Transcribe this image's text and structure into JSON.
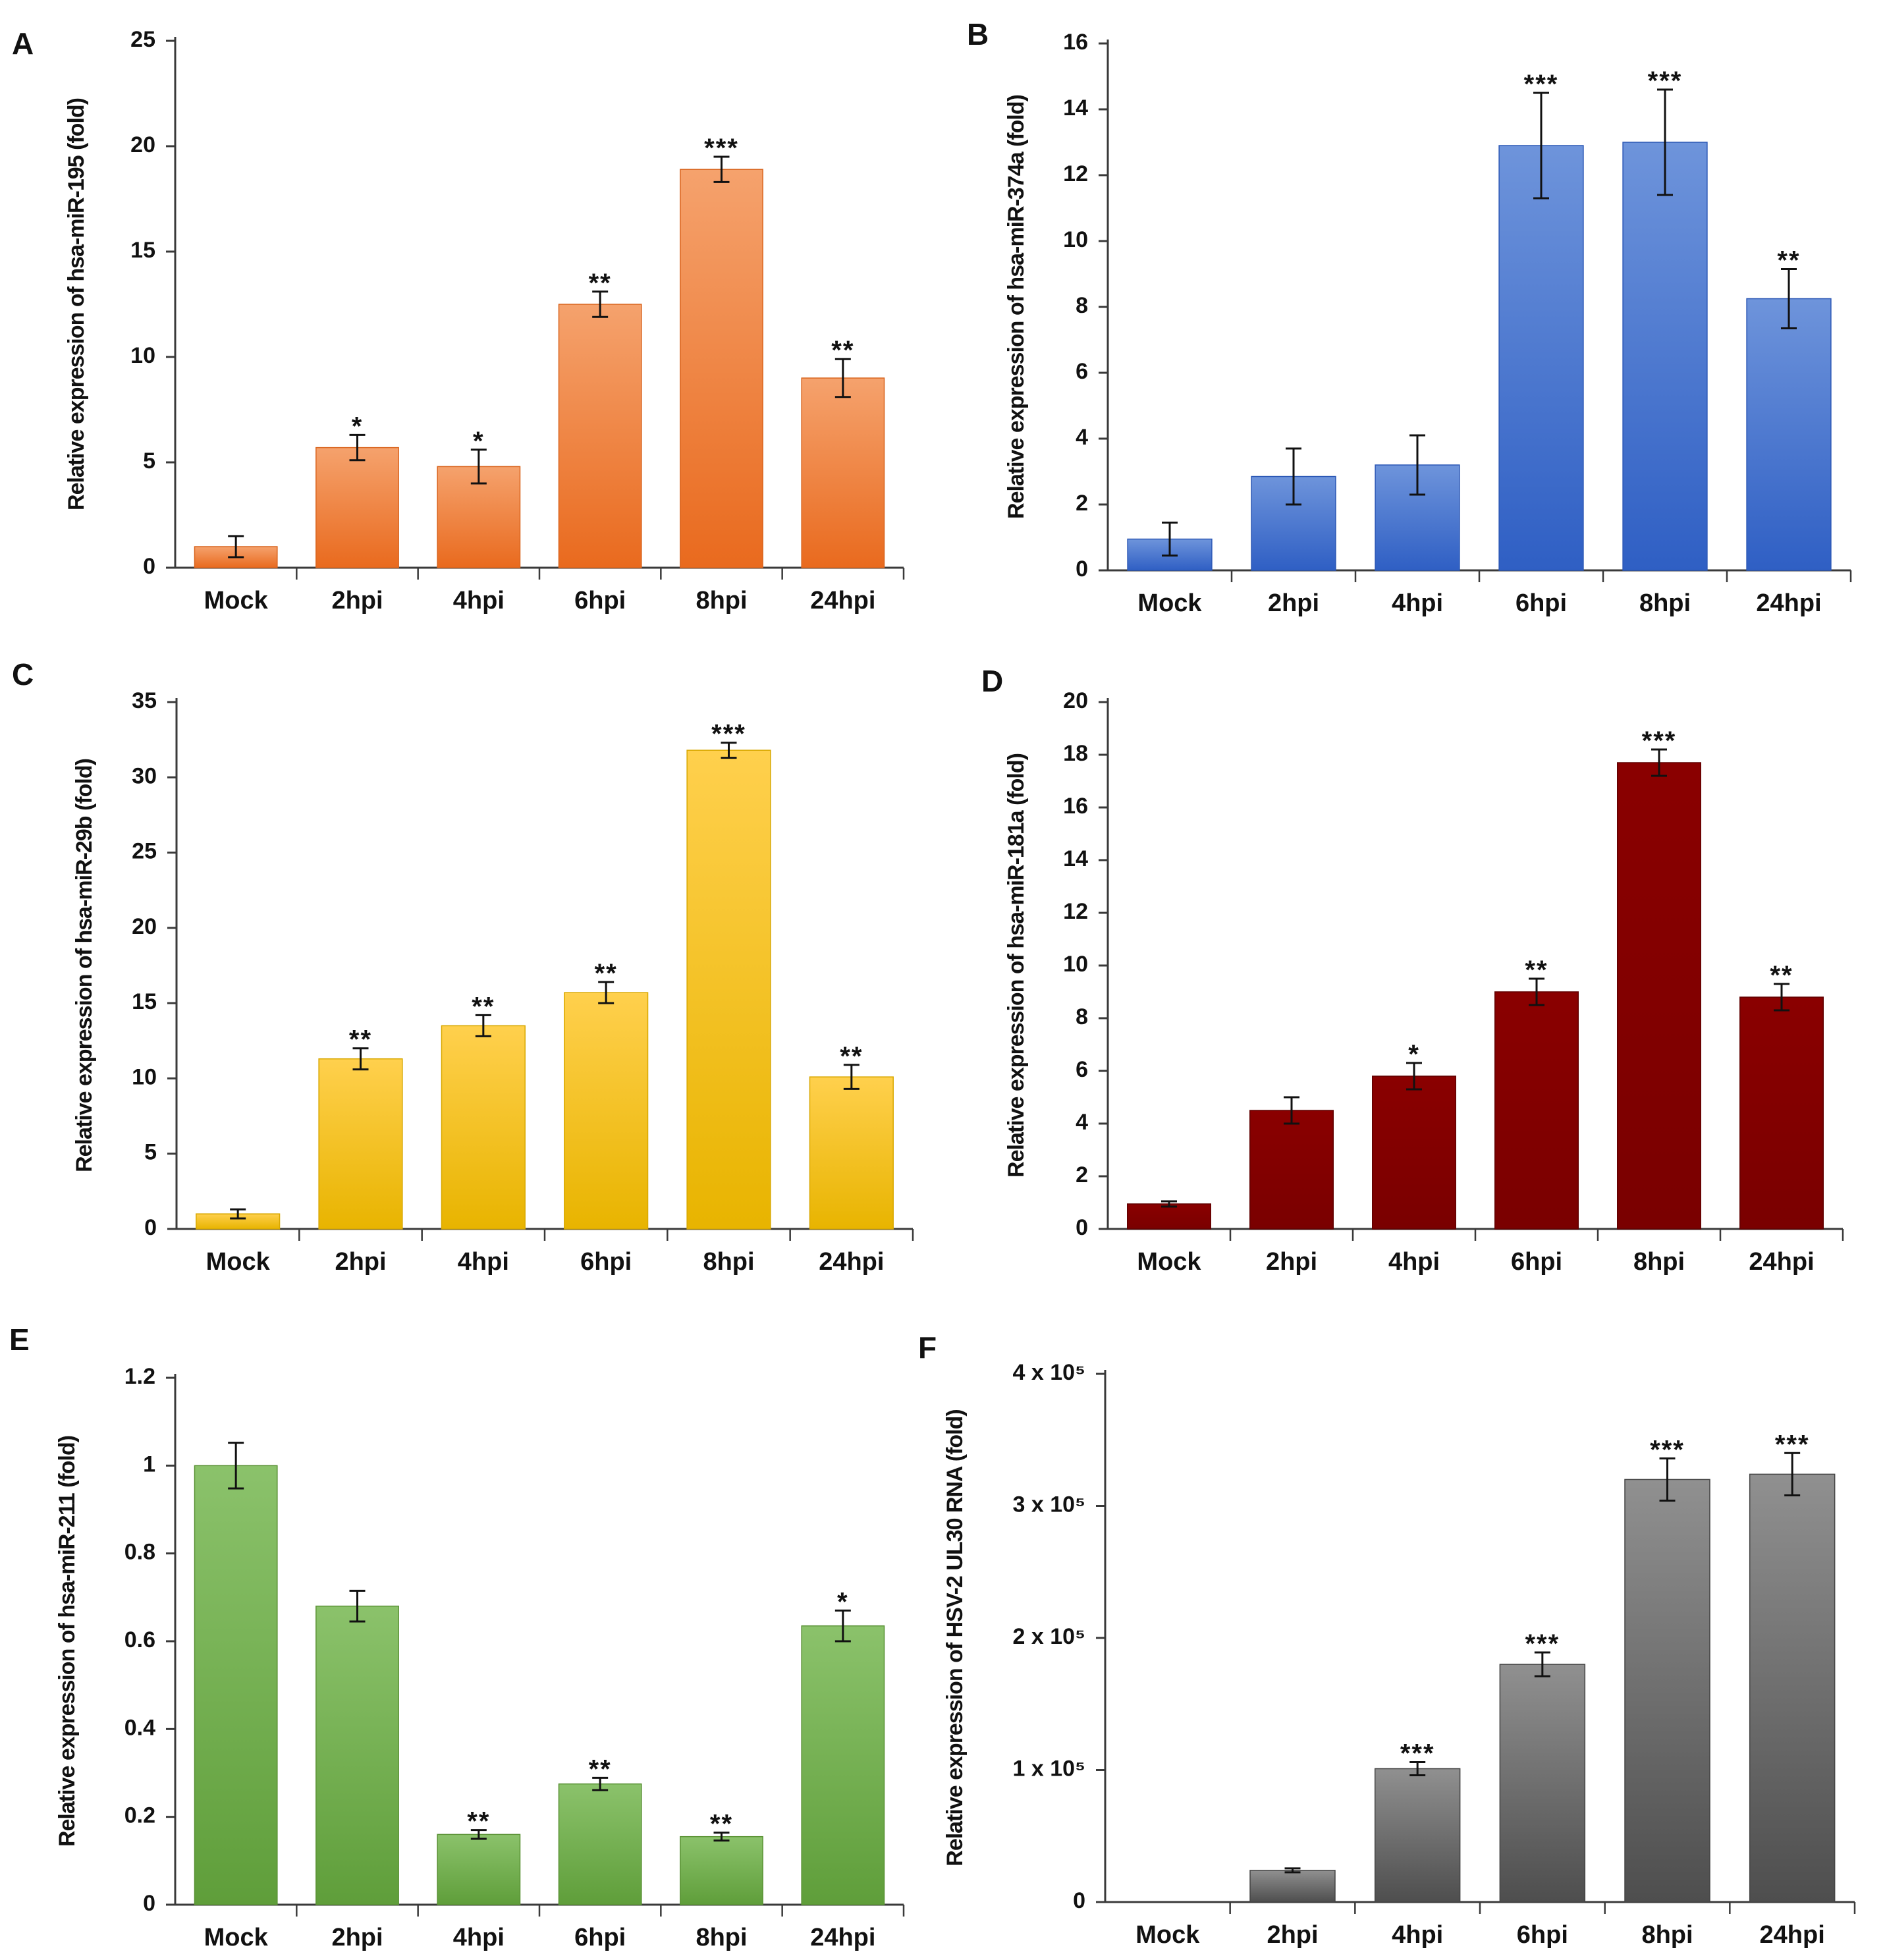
{
  "figure": {
    "layout": "3 rows x 2 columns"
  },
  "chart_data": [
    {
      "panel": "A",
      "type": "bar",
      "categories": [
        "Mock",
        "2hpi",
        "4hpi",
        "6hpi",
        "8hpi",
        "24hpi"
      ],
      "values": [
        1.0,
        5.7,
        4.8,
        12.5,
        18.9,
        9.0
      ],
      "errors": [
        0.5,
        0.6,
        0.8,
        0.6,
        0.6,
        0.9
      ],
      "significance": [
        "",
        "*",
        "*",
        "**",
        "***",
        "**"
      ],
      "ylabel": "Relative expression of hsa-miR-195 (fold)",
      "ylim": [
        0,
        25
      ],
      "yticks": [
        0,
        5,
        10,
        15,
        20,
        25
      ],
      "ytick_labels": [
        "0",
        "5",
        "10",
        "15",
        "20",
        "25"
      ],
      "colors": {
        "top": "#F5A26D",
        "bottom": "#E96A1E",
        "edge": "#D9651F"
      }
    },
    {
      "panel": "B",
      "type": "bar",
      "categories": [
        "Mock",
        "2hpi",
        "4hpi",
        "6hpi",
        "8hpi",
        "24hpi"
      ],
      "values": [
        0.95,
        2.85,
        3.2,
        12.9,
        13.0,
        8.25
      ],
      "errors": [
        0.5,
        0.85,
        0.9,
        1.6,
        1.6,
        0.9
      ],
      "significance": [
        "",
        "",
        "",
        "***",
        "***",
        "**"
      ],
      "ylabel": "Relative expression of hsa-miR-374a (fold)",
      "ylim": [
        0,
        16
      ],
      "yticks": [
        0,
        2,
        4,
        6,
        8,
        10,
        12,
        14,
        16
      ],
      "ytick_labels": [
        "0",
        "2",
        "4",
        "6",
        "8",
        "10",
        "12",
        "14",
        "16"
      ],
      "colors": {
        "top": "#6E94DB",
        "bottom": "#2F5FC4",
        "edge": "#2C58B5"
      }
    },
    {
      "panel": "C",
      "type": "bar",
      "categories": [
        "Mock",
        "2hpi",
        "4hpi",
        "6hpi",
        "8hpi",
        "24hpi"
      ],
      "values": [
        1.0,
        11.3,
        13.5,
        15.7,
        31.8,
        10.1
      ],
      "errors": [
        0.3,
        0.7,
        0.7,
        0.7,
        0.5,
        0.8
      ],
      "significance": [
        "",
        "**",
        "**",
        "**",
        "***",
        "**"
      ],
      "ylabel": "Relative expression of hsa-miR-29b (fold)",
      "ylim": [
        0,
        35
      ],
      "yticks": [
        0,
        5,
        10,
        15,
        20,
        25,
        30,
        35
      ],
      "ytick_labels": [
        "0",
        "5",
        "10",
        "15",
        "20",
        "25",
        "30",
        "35"
      ],
      "colors": {
        "top": "#FFD04D",
        "bottom": "#E8B400",
        "edge": "#D9A800"
      }
    },
    {
      "panel": "D",
      "type": "bar",
      "categories": [
        "Mock",
        "2hpi",
        "4hpi",
        "6hpi",
        "8hpi",
        "24hpi"
      ],
      "values": [
        0.95,
        4.5,
        5.8,
        9.0,
        17.7,
        8.8
      ],
      "errors": [
        0.1,
        0.5,
        0.5,
        0.5,
        0.5,
        0.5
      ],
      "significance": [
        "",
        "",
        "*",
        "**",
        "***",
        "**"
      ],
      "ylabel": "Relative expression of hsa-miR-181a (fold)",
      "ylim": [
        0,
        20
      ],
      "yticks": [
        0,
        2,
        4,
        6,
        8,
        10,
        12,
        14,
        16,
        18,
        20
      ],
      "ytick_labels": [
        "0",
        "2",
        "4",
        "6",
        "8",
        "10",
        "12",
        "14",
        "16",
        "18",
        "20"
      ],
      "colors": {
        "top": "#8A0000",
        "bottom": "#7A0000",
        "edge": "#600000"
      }
    },
    {
      "panel": "E",
      "type": "bar",
      "categories": [
        "Mock",
        "2hpi",
        "4hpi",
        "6hpi",
        "8hpi",
        "24hpi"
      ],
      "values": [
        1.0,
        0.68,
        0.16,
        0.275,
        0.155,
        0.635
      ],
      "errors": [
        0.052,
        0.035,
        0.01,
        0.014,
        0.009,
        0.035
      ],
      "significance": [
        "",
        "",
        "**",
        "**",
        "**",
        "*"
      ],
      "ylabel": "Relative expression of hsa-miR-211 (fold)",
      "ylim": [
        0,
        1.2
      ],
      "yticks": [
        0,
        0.2,
        0.4,
        0.6,
        0.8,
        1.0,
        1.2
      ],
      "ytick_labels": [
        "0",
        "0.2",
        "0.4",
        "0.6",
        "0.8",
        "1",
        "1.2"
      ],
      "colors": {
        "top": "#8BC26B",
        "bottom": "#5F9E3A",
        "edge": "#5A9235"
      }
    },
    {
      "panel": "F",
      "type": "bar",
      "categories": [
        "Mock",
        "2hpi",
        "4hpi",
        "6hpi",
        "8hpi",
        "24hpi"
      ],
      "values": [
        0,
        24000,
        101000,
        180000,
        320000,
        324000
      ],
      "errors": [
        0,
        1500,
        5000,
        9000,
        16000,
        16000
      ],
      "significance": [
        "",
        "",
        "***",
        "***",
        "***",
        "***"
      ],
      "ylabel": "Relative expression of HSV-2 UL30 RNA (fold)",
      "ylim": [
        0,
        400000
      ],
      "yticks": [
        0,
        100000,
        200000,
        300000,
        400000
      ],
      "ytick_labels": [
        "0",
        "1 x 10⁵",
        "2 x 10⁵",
        "3 x 10⁵",
        "4 x 10⁵"
      ],
      "colors": {
        "top": "#909090",
        "bottom": "#4E4E4E",
        "edge": "#444444"
      }
    }
  ]
}
